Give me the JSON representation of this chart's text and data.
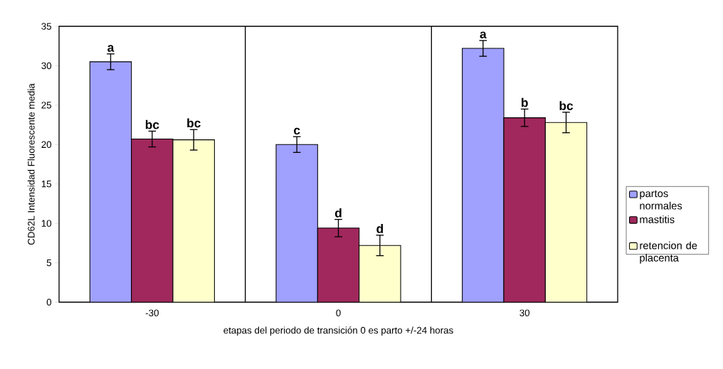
{
  "chart_data": {
    "type": "bar",
    "xlabel": "etapas del periodo de transición 0 es parto +/-24 horas",
    "ylabel": "CD62L Intensidad Fluorescente media",
    "categories": [
      "-30",
      "0",
      "30"
    ],
    "series": [
      {
        "name": "partos normales",
        "color": "#a0a0ff",
        "values": [
          30.5,
          20.0,
          32.2
        ],
        "errors": [
          1.0,
          1.0,
          1.0
        ],
        "value_labels": [
          "a",
          "c",
          "a"
        ]
      },
      {
        "name": "mastitis",
        "color": "#a0285c",
        "values": [
          20.7,
          9.4,
          23.4
        ],
        "errors": [
          1.0,
          1.1,
          1.1
        ],
        "value_labels": [
          "bc",
          "d",
          "b"
        ]
      },
      {
        "name": "retencion de placenta",
        "color": "#ffffcc",
        "values": [
          20.6,
          7.2,
          22.8
        ],
        "errors": [
          1.3,
          1.3,
          1.3
        ],
        "value_labels": [
          "bc",
          "d",
          "bc"
        ]
      }
    ],
    "ylim": [
      0,
      35
    ],
    "yticks": [
      0,
      5,
      10,
      15,
      20,
      25,
      30,
      35
    ],
    "grid": "x",
    "legend": "right"
  }
}
